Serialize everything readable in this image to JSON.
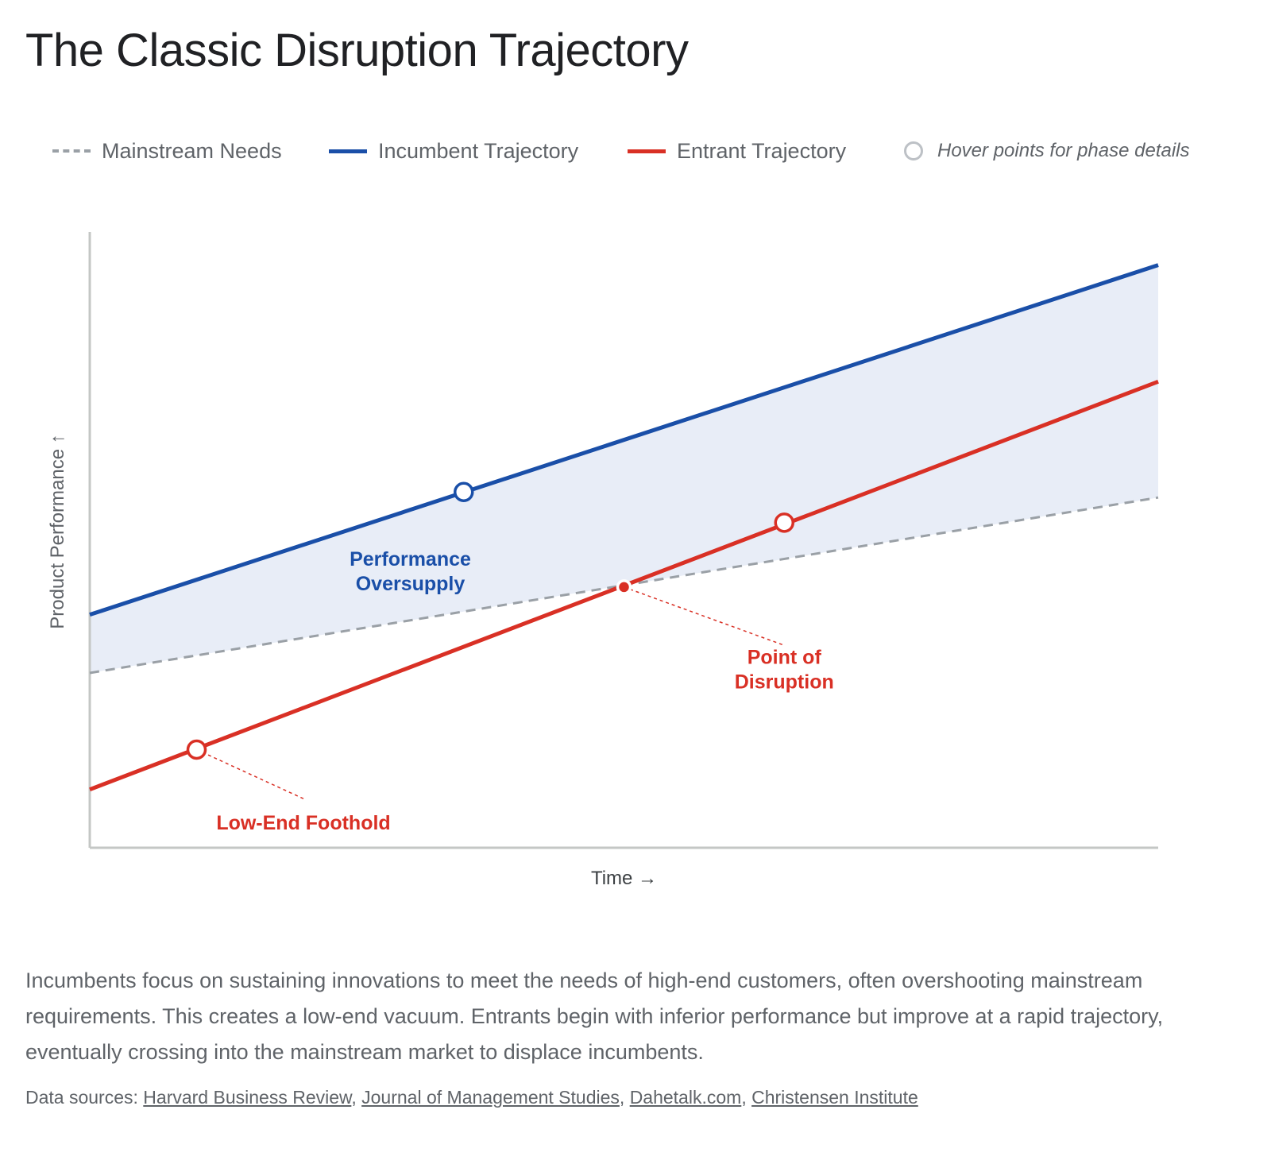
{
  "title": "The Classic Disruption Trajectory",
  "legend": {
    "hint": "Hover points for phase details"
  },
  "chart_data": {
    "type": "line",
    "title": "The Classic Disruption Trajectory",
    "xlabel": "Time →",
    "ylabel": "Product Performance ↑",
    "xlim": [
      0,
      100
    ],
    "ylim": [
      0,
      100
    ],
    "grid": false,
    "legend_position": "top",
    "series": [
      {
        "name": "Mainstream Needs",
        "style": "dashed",
        "color": "#9aa0a6",
        "x": [
          0,
          100
        ],
        "y": [
          28.5,
          57.1
        ]
      },
      {
        "name": "Incumbent Trajectory",
        "style": "solid",
        "color": "#1a4fa8",
        "x": [
          0,
          100
        ],
        "y": [
          38,
          95
        ]
      },
      {
        "name": "Entrant Trajectory",
        "style": "solid",
        "color": "#d93025",
        "x": [
          0,
          100
        ],
        "y": [
          9.5,
          76
        ]
      }
    ],
    "fill_between": {
      "upper": "Incumbent Trajectory",
      "lower": "Mainstream Needs",
      "color": "#e8edf7"
    },
    "points": [
      {
        "series": "Incumbent Trajectory",
        "x": 35,
        "y": 58,
        "marker": "open-circle",
        "color": "#1a4fa8"
      },
      {
        "series": "Entrant Trajectory",
        "x": 10,
        "y": 16,
        "marker": "open-circle",
        "color": "#d93025"
      },
      {
        "series": "Entrant Trajectory",
        "x": 50,
        "y": 42.5,
        "marker": "filled-dot",
        "color": "#d93025"
      },
      {
        "series": "Entrant Trajectory",
        "x": 65,
        "y": 53,
        "marker": "open-circle",
        "color": "#d93025"
      }
    ],
    "annotations": [
      {
        "lines": [
          "Performance",
          "Oversupply"
        ],
        "x": 30,
        "y": 46,
        "color": "#1a4fa8"
      },
      {
        "lines": [
          "Point of",
          "Disruption"
        ],
        "x": 65,
        "y": 30,
        "color": "#d93025",
        "leader_from": [
          50,
          42.5
        ],
        "leader_to": [
          65,
          33
        ]
      },
      {
        "lines": [
          "Low-End Foothold"
        ],
        "x": 20,
        "y": 3,
        "color": "#d93025",
        "leader_from": [
          10,
          16
        ],
        "leader_to": [
          20,
          8
        ]
      }
    ]
  },
  "description": "Incumbents focus on sustaining innovations to meet the needs of high-end customers, often overshooting mainstream requirements. This creates a low-end vacuum. Entrants begin with inferior performance but improve at a rapid trajectory, eventually crossing into the mainstream market to displace incumbents.",
  "sources": {
    "label": "Data sources: ",
    "links": [
      "Harvard Business Review",
      "Journal of Management Studies",
      "Dahetalk.com",
      "Christensen Institute"
    ]
  }
}
